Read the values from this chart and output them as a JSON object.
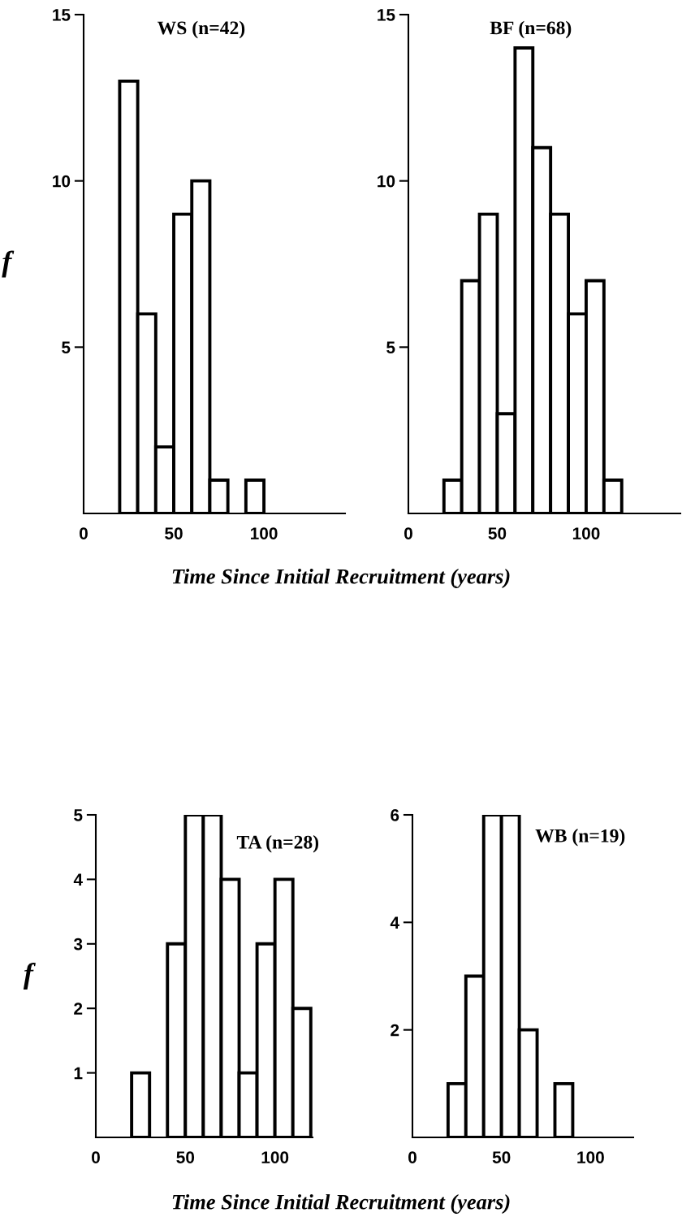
{
  "chart_data": [
    {
      "type": "histogram",
      "title": "WS (n=42)",
      "ylabel": "f",
      "bins": [
        20,
        30,
        40,
        50,
        60,
        70,
        80,
        90,
        100
      ],
      "values": [
        13,
        6,
        2,
        9,
        10,
        1,
        0,
        1
      ],
      "color": "#ffffff",
      "xlim": [
        0,
        145
      ],
      "ylim": [
        0,
        15
      ],
      "xticks": [
        0,
        50,
        100
      ],
      "yticks": [
        5,
        10,
        15
      ],
      "grid": false
    },
    {
      "type": "histogram",
      "title": "BF (n=68)",
      "xlabel": "Time Since Initial Recruitment (years)",
      "bins": [
        20,
        30,
        40,
        50,
        60,
        70,
        80,
        90,
        100,
        110,
        120
      ],
      "values": [
        1,
        7,
        9,
        3,
        14,
        11,
        9,
        6,
        7,
        1
      ],
      "color": "#ffffff",
      "xlim": [
        0,
        153
      ],
      "ylim": [
        0,
        15
      ],
      "xticks": [
        0,
        50,
        100
      ],
      "yticks": [
        5,
        10,
        15
      ],
      "grid": false
    },
    {
      "type": "histogram",
      "title": "TA (n=28)",
      "ylabel": "f",
      "bins": [
        20,
        30,
        40,
        50,
        60,
        70,
        80,
        90,
        100,
        110,
        120
      ],
      "values": [
        1,
        0,
        3,
        5,
        5,
        4,
        1,
        3,
        4,
        2
      ],
      "color": "#ffffff",
      "xlim": [
        0,
        121
      ],
      "ylim": [
        0,
        5
      ],
      "xticks": [
        0,
        50,
        100
      ],
      "yticks": [
        1,
        2,
        3,
        4,
        5
      ],
      "grid": false
    },
    {
      "type": "histogram",
      "title": "WB (n=19)",
      "xlabel": "Time Since Initial Recruitment (years)",
      "bins": [
        20,
        30,
        40,
        50,
        60,
        70,
        80,
        90
      ],
      "values": [
        1,
        3,
        6,
        6,
        2,
        0,
        1
      ],
      "color": "#ffffff",
      "xlim": [
        0,
        124
      ],
      "ylim": [
        0,
        6
      ],
      "xticks": [
        0,
        50,
        100
      ],
      "yticks": [
        2,
        4,
        6
      ],
      "grid": false
    }
  ]
}
